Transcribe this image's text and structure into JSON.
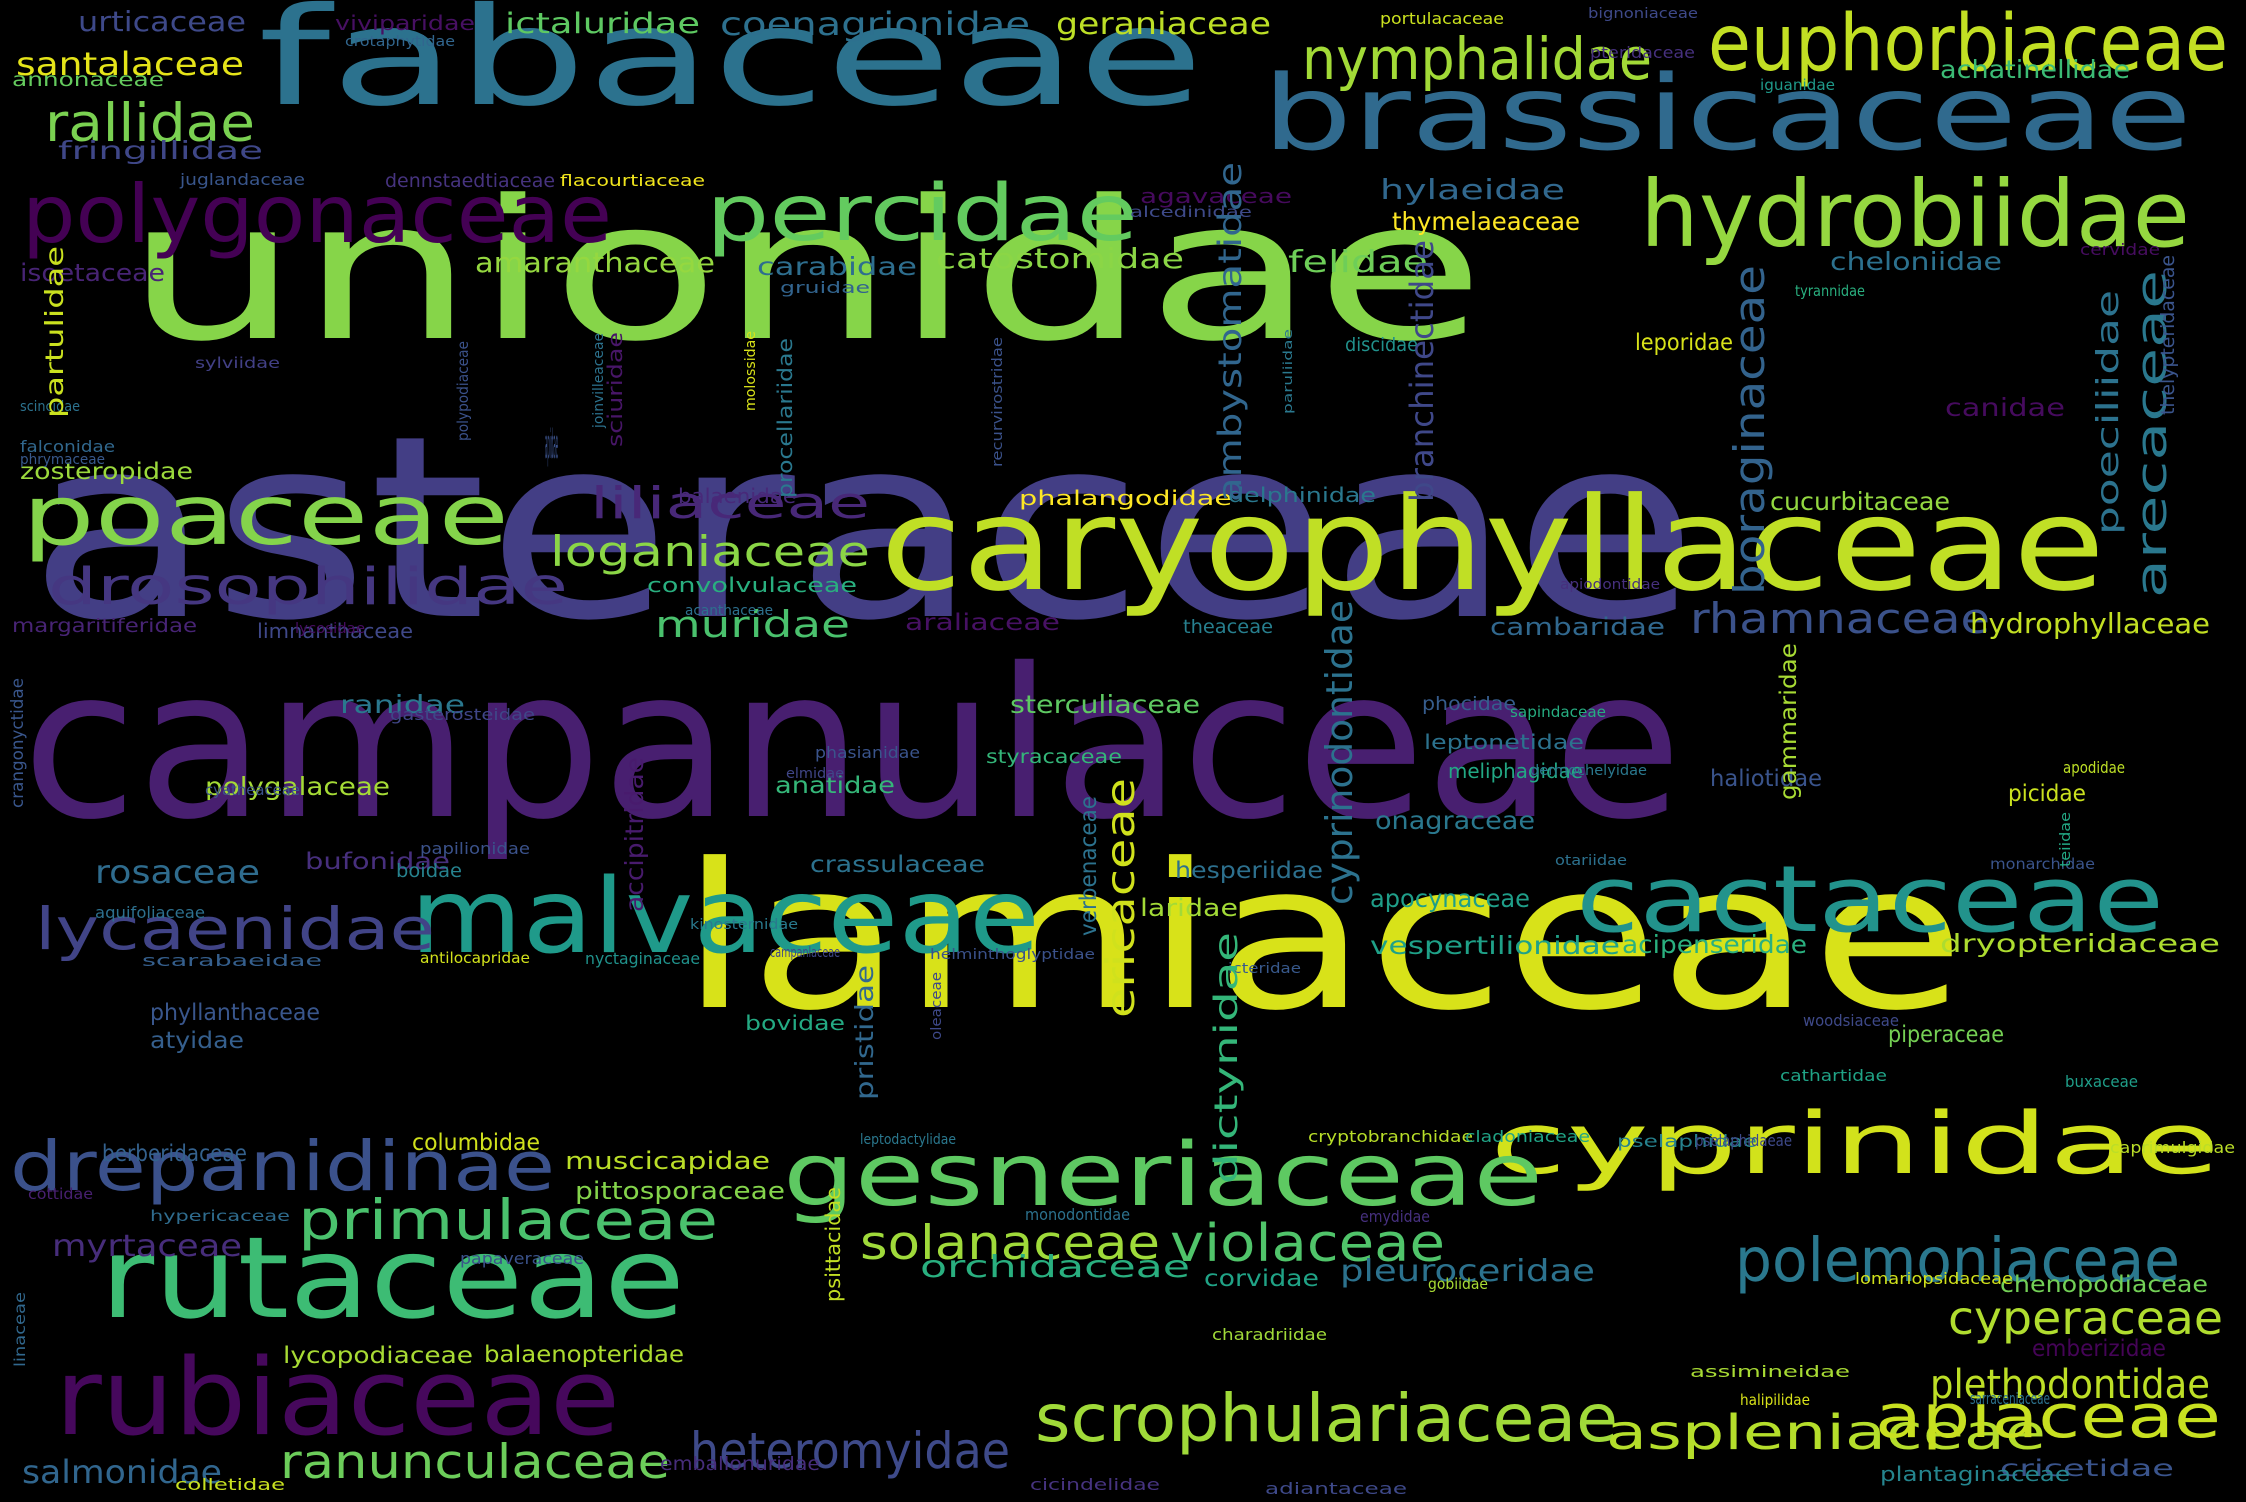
{
  "cloud": {
    "background": "#000000",
    "words": [
      {
        "text": "unionidae",
        "color": "#86d549"
      },
      {
        "text": "asteraceae",
        "color": "#433e85"
      },
      {
        "text": "campanulaceae",
        "color": "#481f70"
      },
      {
        "text": "lamiaceae",
        "color": "#d8e219"
      },
      {
        "text": "fabaceae",
        "color": "#2c728e"
      },
      {
        "text": "brassicaceae",
        "color": "#306a8e"
      },
      {
        "text": "caryophyllaceae",
        "color": "#c0df25"
      },
      {
        "text": "cyprinidae",
        "color": "#d2e21b"
      },
      {
        "text": "rutaceae",
        "color": "#3dbc74"
      },
      {
        "text": "malvaceae",
        "color": "#1f9a8a"
      },
      {
        "text": "cactaceae",
        "color": "#22938c"
      },
      {
        "text": "rubiaceae",
        "color": "#46085c"
      },
      {
        "text": "gesneriaceae",
        "color": "#5ec962"
      },
      {
        "text": "poaceae",
        "color": "#84d44b"
      },
      {
        "text": "percidae",
        "color": "#63cb5f"
      },
      {
        "text": "hydrobiidae",
        "color": "#95d840"
      },
      {
        "text": "polygonaceae",
        "color": "#440154"
      },
      {
        "text": "euphorbiaceae",
        "color": "#c2df23"
      },
      {
        "text": "drepanidinae",
        "color": "#3b518b"
      },
      {
        "text": "drosophilidae",
        "color": "#453781"
      },
      {
        "text": "primulaceae",
        "color": "#4ac16d"
      },
      {
        "text": "scrophulariaceae",
        "color": "#a0da39"
      },
      {
        "text": "aspleniaceae",
        "color": "#b5de2b"
      },
      {
        "text": "apiaceae",
        "color": "#c8e020"
      },
      {
        "text": "polemoniaceae",
        "color": "#2a788e"
      },
      {
        "text": "nymphalidae",
        "color": "#a2da37"
      },
      {
        "text": "lycaenidae",
        "color": "#414487"
      },
      {
        "text": "heteromyidae",
        "color": "#3e4a89"
      },
      {
        "text": "ranunculaceae",
        "color": "#6ccd5a"
      },
      {
        "text": "violaceae",
        "color": "#50c46a"
      },
      {
        "text": "solanaceae",
        "color": "#9fda3a"
      },
      {
        "text": "cyperaceae",
        "color": "#b0dd2f"
      },
      {
        "text": "plethodontidae",
        "color": "#bddf26"
      },
      {
        "text": "rallidae",
        "color": "#7ad151"
      },
      {
        "text": "liliaceae",
        "color": "#482878"
      },
      {
        "text": "loganiaceae",
        "color": "#8bd646"
      },
      {
        "text": "rhamnaceae",
        "color": "#3b528b"
      },
      {
        "text": "muridae",
        "color": "#4ac16d"
      },
      {
        "text": "salmonidae",
        "color": "#31668e"
      },
      {
        "text": "rosaceae",
        "color": "#2f6c8e"
      },
      {
        "text": "orchidaceae",
        "color": "#29af7f"
      },
      {
        "text": "myrtaceae",
        "color": "#472d7b"
      },
      {
        "text": "pleuroceridae",
        "color": "#2c728e"
      },
      {
        "text": "coenagrionidae",
        "color": "#2d708e"
      },
      {
        "text": "ictaluridae",
        "color": "#5ec962"
      },
      {
        "text": "geraniaceae",
        "color": "#bddf26"
      },
      {
        "text": "santalaceae",
        "color": "#e5e419"
      },
      {
        "text": "urticaceae",
        "color": "#3e4989"
      },
      {
        "text": "amaranthaceae",
        "color": "#95d840"
      },
      {
        "text": "catostomidae",
        "color": "#8bd646"
      },
      {
        "text": "felidae",
        "color": "#6ece58"
      },
      {
        "text": "carabidae",
        "color": "#2e6e8e"
      },
      {
        "text": "hylaeidae",
        "color": "#31688e"
      },
      {
        "text": "thymelaeaceae",
        "color": "#fde725"
      },
      {
        "text": "cheloniidae",
        "color": "#2c718e"
      },
      {
        "text": "achatinellidae",
        "color": "#3bbb75"
      },
      {
        "text": "fringillidae",
        "color": "#3f4788"
      },
      {
        "text": "cucurbitaceae",
        "color": "#93d741"
      },
      {
        "text": "hydrophyllaceae",
        "color": "#c2df23"
      },
      {
        "text": "cambaridae",
        "color": "#31688e"
      },
      {
        "text": "araliaceae",
        "color": "#471164"
      },
      {
        "text": "ranidae",
        "color": "#2a788e"
      },
      {
        "text": "sterculiaceae",
        "color": "#5ec962"
      },
      {
        "text": "polygalaceae",
        "color": "#a5db36"
      },
      {
        "text": "anatidae",
        "color": "#35b779"
      },
      {
        "text": "onagraceae",
        "color": "#2a788e"
      },
      {
        "text": "apocynaceae",
        "color": "#1f9e89"
      },
      {
        "text": "hesperiidae",
        "color": "#2d708e"
      },
      {
        "text": "vespertilionidae",
        "color": "#1fa188"
      },
      {
        "text": "acipenseridae",
        "color": "#2ab07f"
      },
      {
        "text": "dryopteridaceae",
        "color": "#addc30"
      },
      {
        "text": "crassulaceae",
        "color": "#2c728e"
      },
      {
        "text": "bufonidae",
        "color": "#472f7d"
      },
      {
        "text": "muscicapidae",
        "color": "#bade28"
      },
      {
        "text": "pittosporaceae",
        "color": "#84d44b"
      },
      {
        "text": "columbidae",
        "color": "#d0e11c"
      },
      {
        "text": "berberidaceae",
        "color": "#34618d"
      },
      {
        "text": "chenopodiaceae",
        "color": "#73d056"
      },
      {
        "text": "emberizidae",
        "color": "#450457"
      },
      {
        "text": "cricetidae",
        "color": "#3a548c"
      },
      {
        "text": "plantaginaceae",
        "color": "#25858e"
      },
      {
        "text": "lycopodiaceae",
        "color": "#a8db34"
      },
      {
        "text": "balaenopteridae",
        "color": "#addc30"
      },
      {
        "text": "corvidae",
        "color": "#20a386"
      },
      {
        "text": "laridae",
        "color": "#a2da37"
      },
      {
        "text": "bovidae",
        "color": "#24aa83"
      },
      {
        "text": "piperaceae",
        "color": "#75d054"
      },
      {
        "text": "phyllanthaceae",
        "color": "#39568c"
      },
      {
        "text": "atyidae",
        "color": "#355f8d"
      },
      {
        "text": "papilionidae",
        "color": "#3b528b"
      },
      {
        "text": "boidae",
        "color": "#26828e"
      },
      {
        "text": "styracaceae",
        "color": "#34b679"
      },
      {
        "text": "phocidae",
        "color": "#365d8d"
      },
      {
        "text": "leptonetidae",
        "color": "#2c728e"
      },
      {
        "text": "meliphagidae",
        "color": "#22a884"
      },
      {
        "text": "haliotidae",
        "color": "#3a548c"
      },
      {
        "text": "picidae",
        "color": "#cae11f"
      },
      {
        "text": "apodidae",
        "color": "#bddf26"
      },
      {
        "text": "theaceae",
        "color": "#277f8e"
      },
      {
        "text": "convolvulaceae",
        "color": "#29af7f"
      },
      {
        "text": "phalangodidae",
        "color": "#fde725"
      },
      {
        "text": "balaenidae",
        "color": "#482979"
      },
      {
        "text": "delphinidae",
        "color": "#2a788e"
      },
      {
        "text": "leporidae",
        "color": "#d8e219"
      },
      {
        "text": "canidae",
        "color": "#460b5e"
      },
      {
        "text": "zosteropidae",
        "color": "#9bd93c"
      },
      {
        "text": "margaritiferidae",
        "color": "#482475"
      },
      {
        "text": "limnanthaceae",
        "color": "#3f4889"
      },
      {
        "text": "annonaceae",
        "color": "#65cb5e"
      },
      {
        "text": "isoetaceae",
        "color": "#482475"
      },
      {
        "text": "agavaceae",
        "color": "#460a5d"
      },
      {
        "text": "dennstaedtiaceae",
        "color": "#46337f"
      },
      {
        "text": "flacourtiaceae",
        "color": "#f1e51d"
      },
      {
        "text": "juglandaceae",
        "color": "#39568c"
      },
      {
        "text": "viviparidae",
        "color": "#471063"
      },
      {
        "text": "crotaphytidae",
        "color": "#31668e"
      },
      {
        "text": "portulacaceae",
        "color": "#cae11f"
      },
      {
        "text": "bignoniaceae",
        "color": "#3e4989"
      },
      {
        "text": "pteridaceae",
        "color": "#46307e"
      },
      {
        "text": "iguanidae",
        "color": "#1f9a8a"
      },
      {
        "text": "alcedinidae",
        "color": "#3e4a89"
      },
      {
        "text": "gruidae",
        "color": "#32648e"
      },
      {
        "text": "sylviidae",
        "color": "#424086"
      },
      {
        "text": "phrymaceae",
        "color": "#38598c"
      },
      {
        "text": "scincidae",
        "color": "#2c728e"
      },
      {
        "text": "falconidae",
        "color": "#31688e"
      },
      {
        "text": "aquifoliaceae",
        "color": "#2d708e"
      },
      {
        "text": "cyatheaceae",
        "color": "#3b528b"
      },
      {
        "text": "gasterosteidae",
        "color": "#404688"
      },
      {
        "text": "sapindaceae",
        "color": "#26ad81"
      },
      {
        "text": "dermochelyidae",
        "color": "#2a788e"
      },
      {
        "text": "elmidae",
        "color": "#404688"
      },
      {
        "text": "kinosternidae",
        "color": "#297a8e"
      },
      {
        "text": "phasianidae",
        "color": "#3a548c"
      },
      {
        "text": "woodsiaceae",
        "color": "#3e4989"
      },
      {
        "text": "nyctaginaceae",
        "color": "#20928c"
      },
      {
        "text": "antilocapridae",
        "color": "#d2e21b"
      },
      {
        "text": "scarabaeidae",
        "color": "#355f8d"
      },
      {
        "text": "icteridae",
        "color": "#38598c"
      },
      {
        "text": "otariidae",
        "color": "#2c718e"
      },
      {
        "text": "monarchidae",
        "color": "#3a548c"
      },
      {
        "text": "campanlaceae",
        "color": "#3f4788"
      },
      {
        "text": "helminthoglyptidae",
        "color": "#3b528b"
      },
      {
        "text": "cathartidae",
        "color": "#20a386"
      },
      {
        "text": "buxaceae",
        "color": "#1f9e89"
      },
      {
        "text": "leptodactylidae",
        "color": "#2a788e"
      },
      {
        "text": "cryptobranchidae",
        "color": "#b8de29"
      },
      {
        "text": "cladoniaceae",
        "color": "#20a486"
      },
      {
        "text": "pselaphidae",
        "color": "#26828e"
      },
      {
        "text": "pselaphidaeae",
        "color": "#3e4989"
      },
      {
        "text": "caprimulgidae",
        "color": "#bade28"
      },
      {
        "text": "monodontidae",
        "color": "#2c728e"
      },
      {
        "text": "emydidae",
        "color": "#46307e"
      },
      {
        "text": "hypericaceae",
        "color": "#2f6c8e"
      },
      {
        "text": "papaveraceae",
        "color": "#3b528b"
      },
      {
        "text": "cottidae",
        "color": "#482071"
      },
      {
        "text": "gobiidae",
        "color": "#a8db34"
      },
      {
        "text": "charadriidae",
        "color": "#a0da39"
      },
      {
        "text": "lomariopsidaceae",
        "color": "#d0e11c"
      },
      {
        "text": "sarraceniaceae",
        "color": "#2c728e"
      },
      {
        "text": "assimineidae",
        "color": "#a8db34"
      },
      {
        "text": "halipilidae",
        "color": "#d8e219"
      },
      {
        "text": "emballonuridae",
        "color": "#472d7b"
      },
      {
        "text": "colletidae",
        "color": "#c8e020"
      },
      {
        "text": "cicindelidae",
        "color": "#46337f"
      },
      {
        "text": "adiantaceae",
        "color": "#3e4989"
      },
      {
        "text": "acanthaceae",
        "color": "#2d708e"
      },
      {
        "text": "lycosidae",
        "color": "#470d60"
      },
      {
        "text": "apiodontidae",
        "color": "#46307e"
      },
      {
        "text": "discidae",
        "color": "#21918c"
      },
      {
        "text": "cervidae",
        "color": "#470d60"
      },
      {
        "text": "tyrannidae",
        "color": "#29af7f"
      },
      {
        "text": "partulidae",
        "color": "#cae11f"
      },
      {
        "text": "ambystomatidae",
        "color": "#31668e"
      },
      {
        "text": "cyprinodontidae",
        "color": "#2c728e"
      },
      {
        "text": "ericaceae",
        "color": "#d0e11c"
      },
      {
        "text": "dictynidae",
        "color": "#34b679"
      },
      {
        "text": "branchinectidae",
        "color": "#3f4889"
      },
      {
        "text": "boraginaceae",
        "color": "#33638d"
      },
      {
        "text": "arecaceae",
        "color": "#2a788e"
      },
      {
        "text": "poeciliidae",
        "color": "#2c728e"
      },
      {
        "text": "thelypteridaceae",
        "color": "#3a548c"
      },
      {
        "text": "gammaridae",
        "color": "#a8db34"
      },
      {
        "text": "accipitridae",
        "color": "#481b6d"
      },
      {
        "text": "crangonyctidae",
        "color": "#39568c"
      },
      {
        "text": "verbenaceae",
        "color": "#2c728e"
      },
      {
        "text": "pristidae",
        "color": "#31688e"
      },
      {
        "text": "oleaceae",
        "color": "#3e4989"
      },
      {
        "text": "psittacidae",
        "color": "#c2df23"
      },
      {
        "text": "linaceae",
        "color": "#31688e"
      },
      {
        "text": "teiidae",
        "color": "#22a884"
      },
      {
        "text": "joinvilleaceae",
        "color": "#2c728e"
      },
      {
        "text": "polypodiaceae",
        "color": "#3b528b"
      },
      {
        "text": "sciuridae",
        "color": "#481668"
      },
      {
        "text": "molossidae",
        "color": "#d8e219"
      },
      {
        "text": "procellariidae",
        "color": "#2a788e"
      },
      {
        "text": "recurvirostridae",
        "color": "#3b528b"
      },
      {
        "text": "paruliidae",
        "color": "#2a788e"
      },
      {
        "text": "apidae",
        "color": "#3b528b"
      }
    ]
  }
}
